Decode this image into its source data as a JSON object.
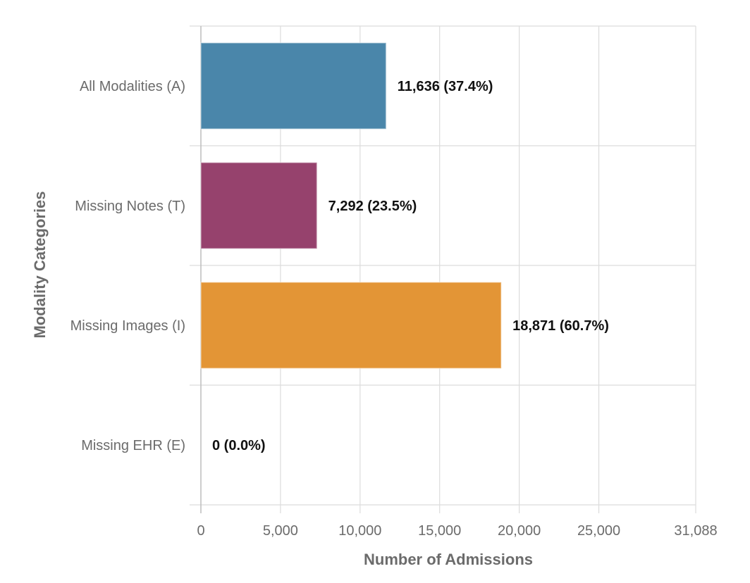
{
  "chart_data": {
    "type": "bar",
    "orientation": "horizontal",
    "categories": [
      "All Modalities (A)",
      "Missing Notes (T)",
      "Missing Images (I)",
      "Missing EHR (E)"
    ],
    "values": [
      11636,
      7292,
      18871,
      0
    ],
    "data_labels": [
      "11,636 (37.4%)",
      "7,292 (23.5%)",
      "18,871 (60.7%)",
      "0 (0.0%)"
    ],
    "colors": [
      "#4a86aa",
      "#96426d",
      "#e39536",
      "#cccccc"
    ],
    "xlabel": "Number of Admissions",
    "ylabel": "Modality Categories",
    "xlim": [
      0,
      31088
    ],
    "xticks": [
      0,
      5000,
      10000,
      15000,
      20000,
      25000,
      31088
    ],
    "xtick_labels": [
      "0",
      "5,000",
      "10,000",
      "15,000",
      "20,000",
      "25,000",
      "31,088"
    ],
    "grid": true,
    "legend": "none"
  }
}
